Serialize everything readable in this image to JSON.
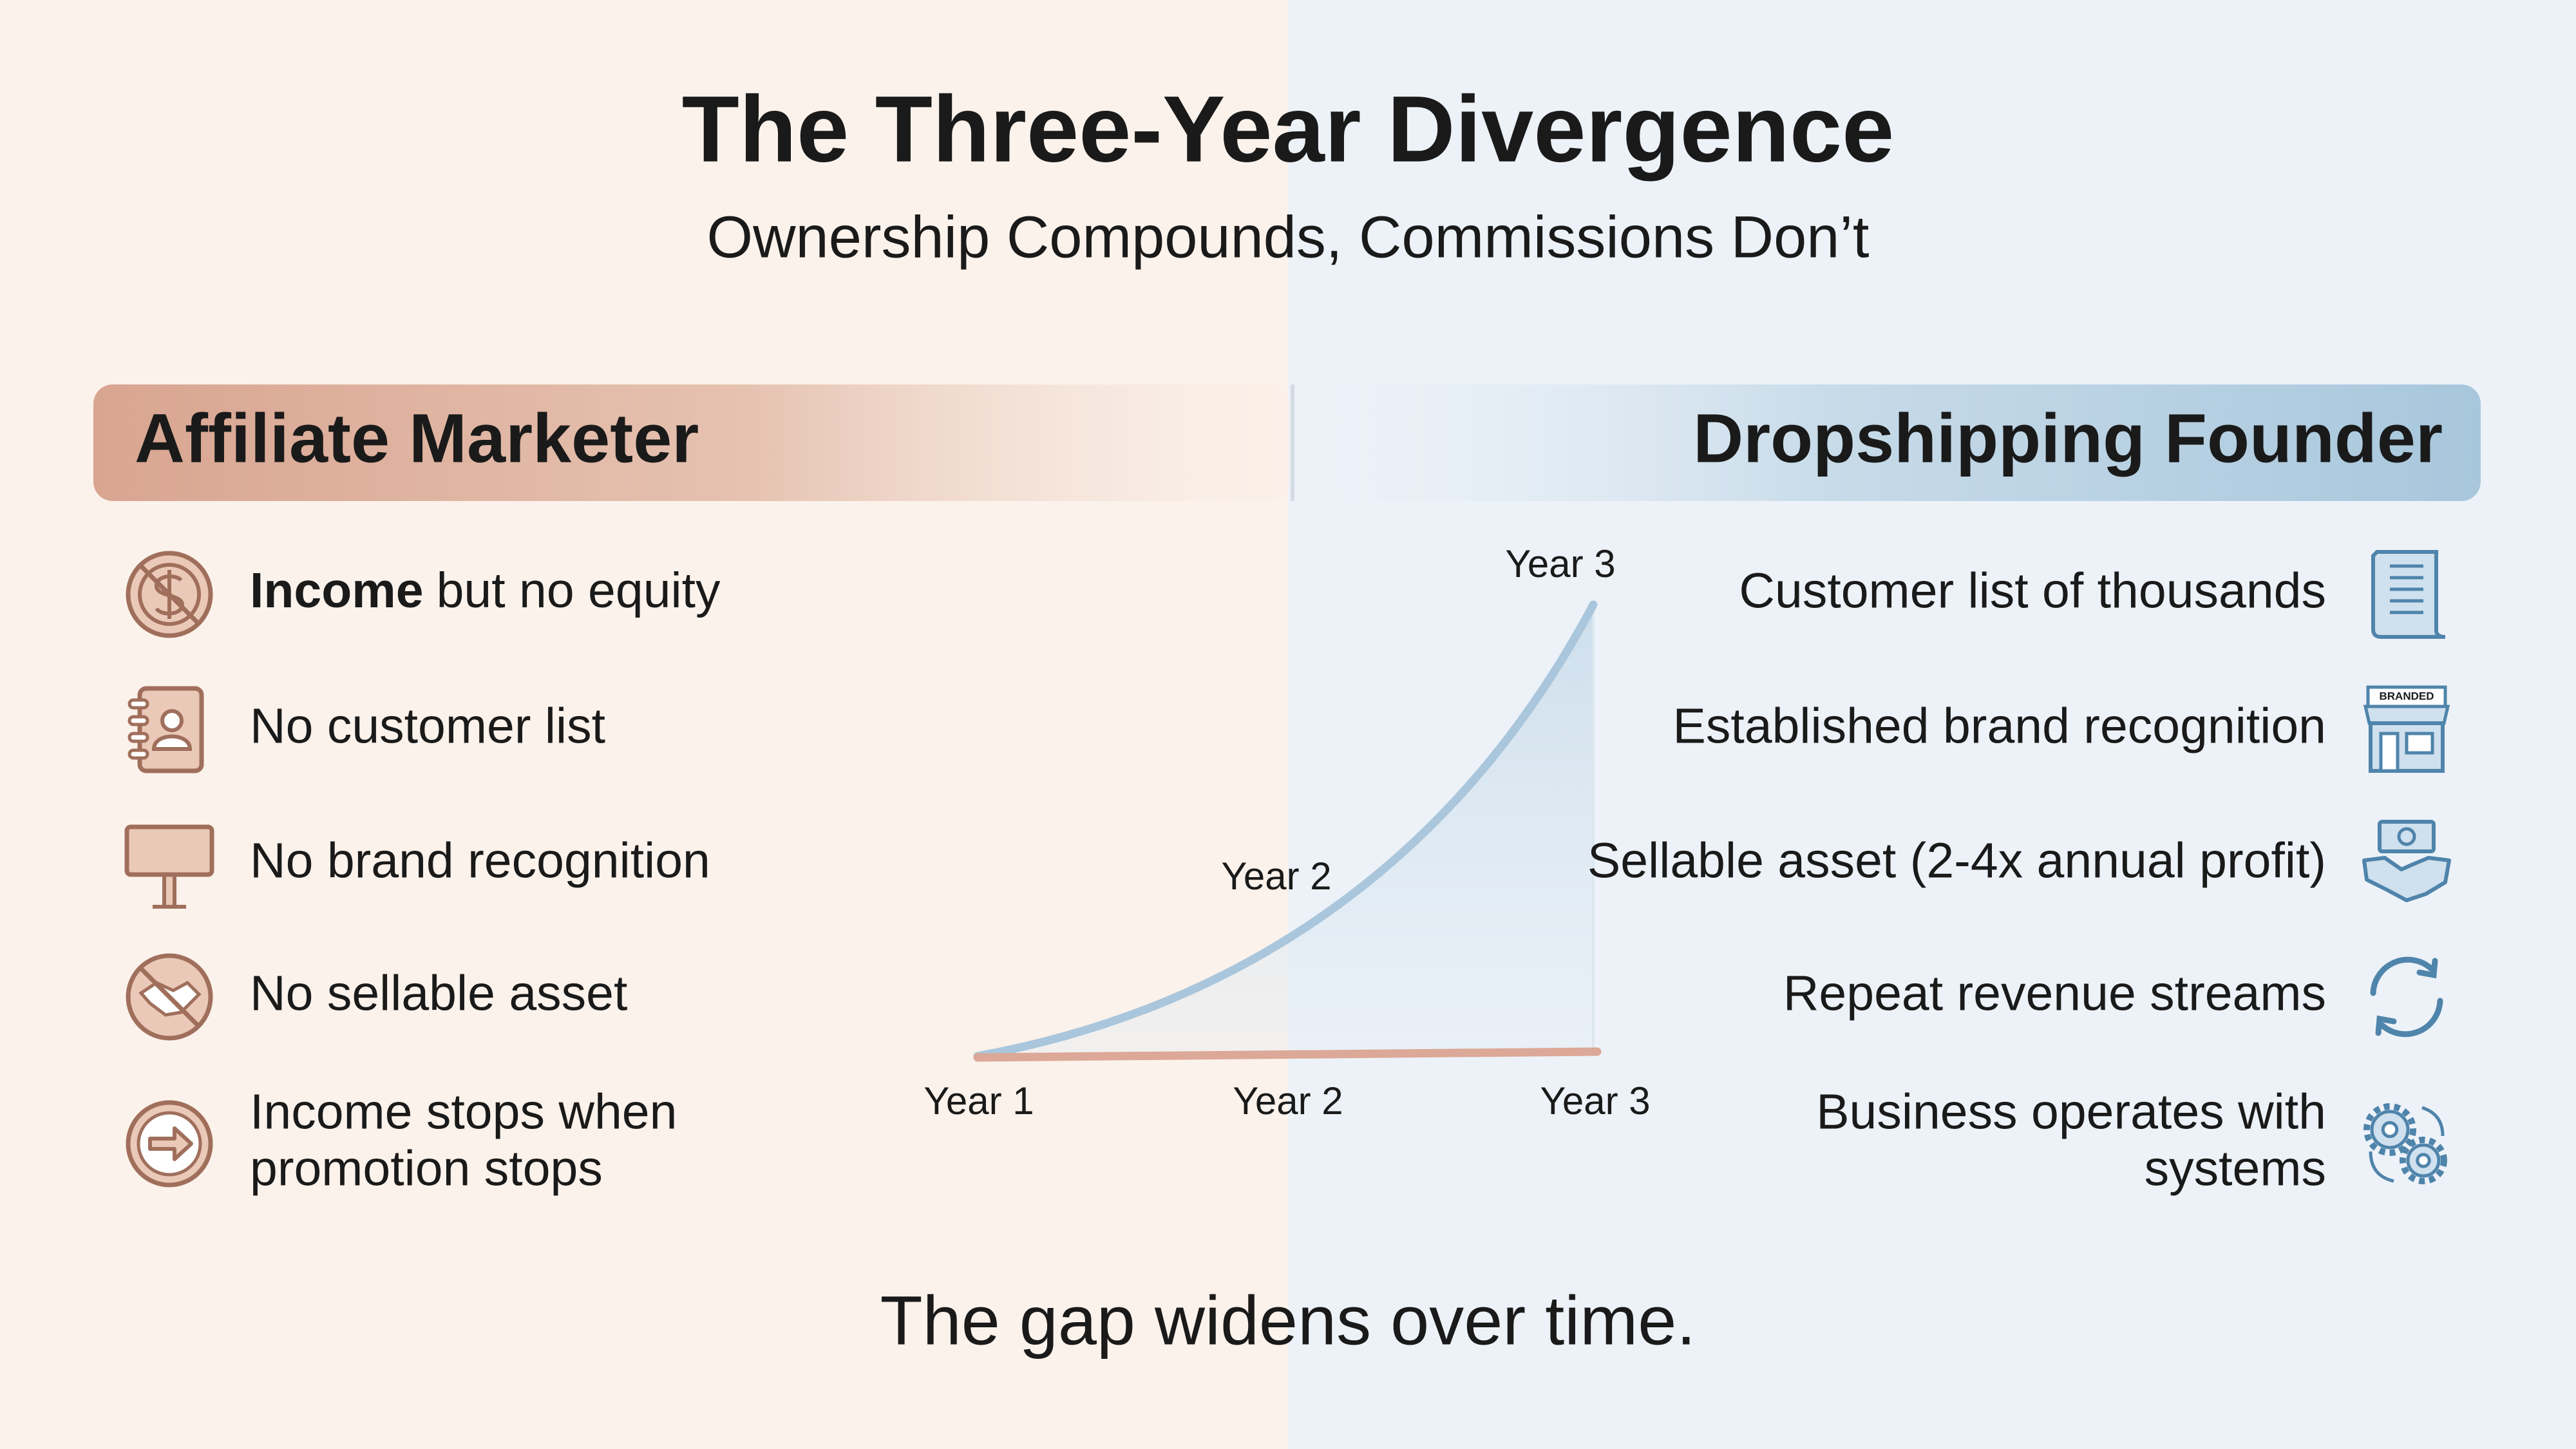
{
  "header": {
    "title": "The Three-Year Divergence",
    "subtitle": "Ownership Compounds, Commissions Don’t"
  },
  "left": {
    "heading": "Affiliate Marketer",
    "items": [
      {
        "bold": "Income",
        "lines": [
          "but no equity"
        ]
      },
      {
        "lines": [
          "No customer list"
        ]
      },
      {
        "lines": [
          "No brand recognition"
        ]
      },
      {
        "lines": [
          "No sellable asset"
        ]
      },
      {
        "lines": [
          "Income stops when",
          "promotion stops"
        ]
      }
    ]
  },
  "right": {
    "heading": "Dropshipping Founder",
    "items": [
      {
        "lines": [
          "Customer list of thousands"
        ]
      },
      {
        "lines": [
          "Established brand recognition"
        ],
        "icon_label": "BRANDED"
      },
      {
        "lines": [
          "Sellable asset (2-4x annual profit)"
        ]
      },
      {
        "lines": [
          "Repeat revenue streams"
        ]
      },
      {
        "lines": [
          "Business operates with",
          "systems"
        ]
      }
    ]
  },
  "chart": {
    "peak_label": "Year 3",
    "mid_label": "Year 2",
    "x_labels": [
      "Year 1",
      "Year 2",
      "Year 3"
    ]
  },
  "footer": "The gap widens over time."
}
